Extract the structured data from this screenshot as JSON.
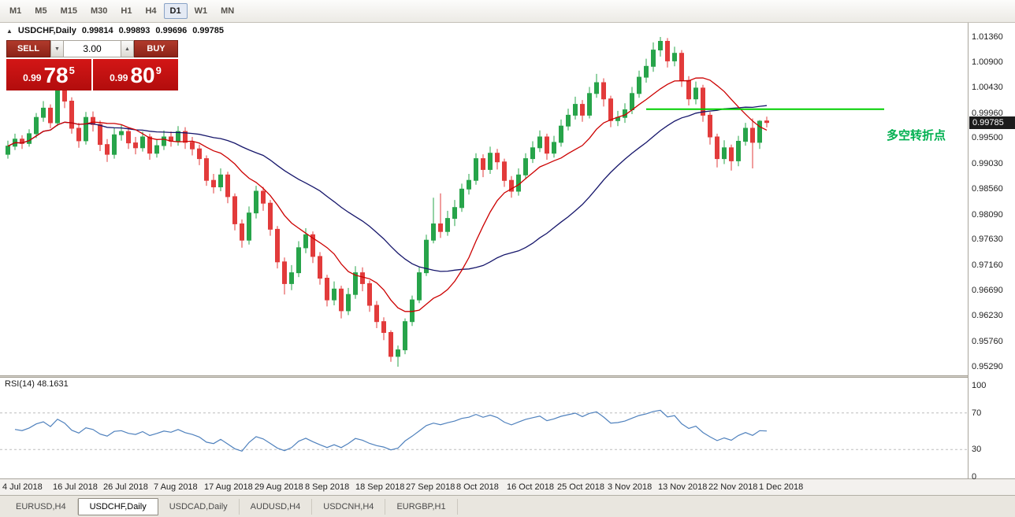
{
  "colors": {
    "candle_up": "#27a44a",
    "candle_down": "#e23b3b",
    "ma_fast": "#cc0000",
    "ma_slow": "#16166b",
    "hline": "#00cf00",
    "rsi": "#4f81bd",
    "annotation": "#00b050",
    "trade_red": "#c01111"
  },
  "toolbar": {
    "timeframes": [
      "M1",
      "M5",
      "M15",
      "M30",
      "H1",
      "H4",
      "D1",
      "W1",
      "MN"
    ],
    "active": "D1"
  },
  "chart": {
    "title_marker": "▲",
    "symbol_label": "USDCHF,Daily",
    "annotation": "多空转折点",
    "trade_widget": {
      "sell_label": "SELL",
      "buy_label": "BUY",
      "volume": "3.00",
      "volume_down_icon": "▼",
      "volume_up_icon": "▲",
      "sell_price": {
        "prefix": "0.99",
        "big": "78",
        "sup": "5"
      },
      "buy_price": {
        "prefix": "0.99",
        "big": "80",
        "sup": "9"
      }
    }
  },
  "rsi_pane": {
    "label": "RSI(14) 48.1631"
  },
  "tabs": [
    {
      "label": "EURUSD,H4",
      "active": false
    },
    {
      "label": "USDCHF,Daily",
      "active": true
    },
    {
      "label": "USDCAD,Daily",
      "active": false
    },
    {
      "label": "AUDUSD,H4",
      "active": false
    },
    {
      "label": "USDCNH,H4",
      "active": false
    },
    {
      "label": "EURGBP,H1",
      "active": false
    }
  ],
  "chart_data": {
    "type": "candlestick",
    "symbol": "USDCHF",
    "timeframe": "Daily",
    "ohlc_current": {
      "open": "0.99814",
      "high": "0.99893",
      "low": "0.99696",
      "close": "0.99785"
    },
    "ylim": [
      0.9529,
      1.0136
    ],
    "y_ticks": [
      "1.01360",
      "1.00900",
      "1.00430",
      "0.99960",
      "0.99500",
      "0.99030",
      "0.98560",
      "0.98090",
      "0.97630",
      "0.97160",
      "0.96690",
      "0.96230",
      "0.95760",
      "0.95290"
    ],
    "x_labels": [
      "4 Jul 2018",
      "16 Jul 2018",
      "26 Jul 2018",
      "7 Aug 2018",
      "17 Aug 2018",
      "29 Aug 2018",
      "8 Sep 2018",
      "18 Sep 2018",
      "27 Sep 2018",
      "8 Oct 2018",
      "16 Oct 2018",
      "25 Oct 2018",
      "3 Nov 2018",
      "13 Nov 2018",
      "22 Nov 2018",
      "1 Dec 2018"
    ],
    "overlays": {
      "ma_fast_period": 12,
      "ma_slow_period": 30
    },
    "hline": {
      "price": 1.0003,
      "start_index": 90,
      "label": "多空转折点"
    },
    "rsi": {
      "period": 14,
      "current": "48.1631",
      "label": "RSI(14) 48.1631",
      "levels": [
        100,
        70,
        30,
        0
      ],
      "dotted": [
        70,
        30
      ]
    },
    "candles": [
      [
        0.992,
        0.9945,
        0.9912,
        0.9935
      ],
      [
        0.9935,
        0.9958,
        0.9928,
        0.9948
      ],
      [
        0.9948,
        0.9955,
        0.993,
        0.994
      ],
      [
        0.994,
        0.9966,
        0.9934,
        0.9958
      ],
      [
        0.9958,
        0.9996,
        0.995,
        0.9988
      ],
      [
        0.9988,
        1.0018,
        0.998,
        1.0005
      ],
      [
        1.0005,
        1.0012,
        0.9968,
        0.9978
      ],
      [
        0.9978,
        1.0058,
        0.9972,
        1.0042
      ],
      [
        1.0042,
        1.005,
        1.0005,
        1.0018
      ],
      [
        1.0018,
        1.0025,
        0.9958,
        0.9968
      ],
      [
        0.9968,
        0.9978,
        0.9932,
        0.9945
      ],
      [
        0.9945,
        0.9998,
        0.9938,
        0.9988
      ],
      [
        0.9988,
        0.9999,
        0.9962,
        0.9975
      ],
      [
        0.9975,
        0.9982,
        0.9926,
        0.9938
      ],
      [
        0.9938,
        0.9948,
        0.9906,
        0.992
      ],
      [
        0.992,
        0.9968,
        0.9912,
        0.9956
      ],
      [
        0.9956,
        0.9975,
        0.9945,
        0.9962
      ],
      [
        0.9962,
        0.997,
        0.993,
        0.9941
      ],
      [
        0.9941,
        0.9952,
        0.992,
        0.9932
      ],
      [
        0.9932,
        0.9962,
        0.9925,
        0.9952
      ],
      [
        0.9952,
        0.9958,
        0.991,
        0.9922
      ],
      [
        0.9922,
        0.9948,
        0.9914,
        0.9936
      ],
      [
        0.9936,
        0.9964,
        0.9928,
        0.9952
      ],
      [
        0.9952,
        0.9962,
        0.9934,
        0.9944
      ],
      [
        0.9944,
        0.9972,
        0.9936,
        0.9962
      ],
      [
        0.9962,
        0.997,
        0.993,
        0.9942
      ],
      [
        0.9942,
        0.9952,
        0.9918,
        0.993
      ],
      [
        0.993,
        0.9938,
        0.99,
        0.9912
      ],
      [
        0.9912,
        0.9918,
        0.9862,
        0.9872
      ],
      [
        0.9872,
        0.9884,
        0.9848,
        0.986
      ],
      [
        0.986,
        0.9894,
        0.9852,
        0.9882
      ],
      [
        0.9882,
        0.9888,
        0.983,
        0.9842
      ],
      [
        0.9842,
        0.9848,
        0.978,
        0.9792
      ],
      [
        0.9792,
        0.98,
        0.9748,
        0.9762
      ],
      [
        0.9762,
        0.9824,
        0.9754,
        0.9812
      ],
      [
        0.9812,
        0.9862,
        0.9802,
        0.9852
      ],
      [
        0.9852,
        0.986,
        0.9816,
        0.983
      ],
      [
        0.983,
        0.9836,
        0.977,
        0.9782
      ],
      [
        0.9782,
        0.9788,
        0.971,
        0.9722
      ],
      [
        0.9722,
        0.973,
        0.9662,
        0.9682
      ],
      [
        0.9682,
        0.9716,
        0.967,
        0.9702
      ],
      [
        0.9702,
        0.976,
        0.9694,
        0.9748
      ],
      [
        0.9748,
        0.9784,
        0.9738,
        0.9772
      ],
      [
        0.9772,
        0.9778,
        0.972,
        0.9732
      ],
      [
        0.9732,
        0.974,
        0.968,
        0.9692
      ],
      [
        0.9692,
        0.9698,
        0.964,
        0.9652
      ],
      [
        0.9652,
        0.9686,
        0.9642,
        0.9672
      ],
      [
        0.9672,
        0.9678,
        0.9618,
        0.9632
      ],
      [
        0.9632,
        0.9674,
        0.9624,
        0.9662
      ],
      [
        0.9662,
        0.9714,
        0.9654,
        0.9702
      ],
      [
        0.9702,
        0.9712,
        0.9668,
        0.9682
      ],
      [
        0.9682,
        0.9688,
        0.963,
        0.9642
      ],
      [
        0.9642,
        0.965,
        0.96,
        0.9612
      ],
      [
        0.9612,
        0.962,
        0.9578,
        0.9592
      ],
      [
        0.9592,
        0.9596,
        0.9538,
        0.9548
      ],
      [
        0.9548,
        0.9568,
        0.9529,
        0.956
      ],
      [
        0.956,
        0.9618,
        0.9552,
        0.9612
      ],
      [
        0.9612,
        0.966,
        0.9604,
        0.9652
      ],
      [
        0.9652,
        0.9712,
        0.9646,
        0.9702
      ],
      [
        0.9702,
        0.9772,
        0.9696,
        0.9762
      ],
      [
        0.9762,
        0.984,
        0.9756,
        0.9792
      ],
      [
        0.9792,
        0.9848,
        0.9766,
        0.9778
      ],
      [
        0.9778,
        0.9816,
        0.977,
        0.9802
      ],
      [
        0.9802,
        0.9836,
        0.9788,
        0.9822
      ],
      [
        0.9822,
        0.9866,
        0.9814,
        0.9856
      ],
      [
        0.9856,
        0.9884,
        0.9846,
        0.9872
      ],
      [
        0.9872,
        0.9922,
        0.9864,
        0.9912
      ],
      [
        0.9912,
        0.992,
        0.9878,
        0.9892
      ],
      [
        0.9892,
        0.9934,
        0.9884,
        0.9922
      ],
      [
        0.9922,
        0.993,
        0.9892,
        0.9906
      ],
      [
        0.9906,
        0.9912,
        0.986,
        0.9872
      ],
      [
        0.9872,
        0.988,
        0.984,
        0.9852
      ],
      [
        0.9852,
        0.9894,
        0.9844,
        0.9882
      ],
      [
        0.9882,
        0.9922,
        0.9874,
        0.9912
      ],
      [
        0.9912,
        0.9944,
        0.9904,
        0.9932
      ],
      [
        0.9932,
        0.9964,
        0.9924,
        0.9952
      ],
      [
        0.9952,
        0.9958,
        0.991,
        0.9922
      ],
      [
        0.9922,
        0.9954,
        0.9914,
        0.9942
      ],
      [
        0.9942,
        0.9984,
        0.9934,
        0.9972
      ],
      [
        0.9972,
        1.0004,
        0.9964,
        0.9992
      ],
      [
        0.9992,
        1.0026,
        0.9984,
        1.0012
      ],
      [
        1.0012,
        1.002,
        0.998,
        0.9992
      ],
      [
        0.9992,
        1.0044,
        0.9986,
        1.0032
      ],
      [
        1.0032,
        1.0068,
        1.0024,
        1.0052
      ],
      [
        1.0052,
        1.006,
        1.0008,
        1.0022
      ],
      [
        1.0022,
        1.0028,
        0.997,
        0.9982
      ],
      [
        0.9982,
        1.0,
        0.9972,
        0.9988
      ],
      [
        0.9988,
        1.0014,
        0.9978,
        1.0002
      ],
      [
        1.0002,
        1.0044,
        0.9994,
        1.0032
      ],
      [
        1.0032,
        1.0074,
        1.0024,
        1.0062
      ],
      [
        1.0062,
        1.0096,
        1.0052,
        1.0082
      ],
      [
        1.0082,
        1.0126,
        1.0072,
        1.0112
      ],
      [
        1.0112,
        1.0136,
        1.01,
        1.0128
      ],
      [
        1.0128,
        1.0134,
        1.008,
        1.0092
      ],
      [
        1.0092,
        1.0118,
        1.0082,
        1.0106
      ],
      [
        1.0106,
        1.0112,
        1.0044,
        1.0056
      ],
      [
        1.0056,
        1.0064,
        1.001,
        1.0022
      ],
      [
        1.0022,
        1.0054,
        1.0012,
        1.0042
      ],
      [
        1.0042,
        1.0048,
        0.998,
        0.9992
      ],
      [
        0.9992,
        0.9998,
        0.9938,
        0.9952
      ],
      [
        0.9952,
        0.9958,
        0.9896,
        0.9912
      ],
      [
        0.9912,
        0.9946,
        0.9902,
        0.9932
      ],
      [
        0.9932,
        0.9938,
        0.989,
        0.9908
      ],
      [
        0.9908,
        0.9954,
        0.9898,
        0.9944
      ],
      [
        0.9944,
        0.9978,
        0.9936,
        0.9968
      ],
      [
        0.9968,
        0.9986,
        0.9894,
        0.9942
      ],
      [
        0.9942,
        0.9983,
        0.993,
        0.9981
      ],
      [
        0.99814,
        0.99893,
        0.99696,
        0.99785
      ]
    ]
  }
}
